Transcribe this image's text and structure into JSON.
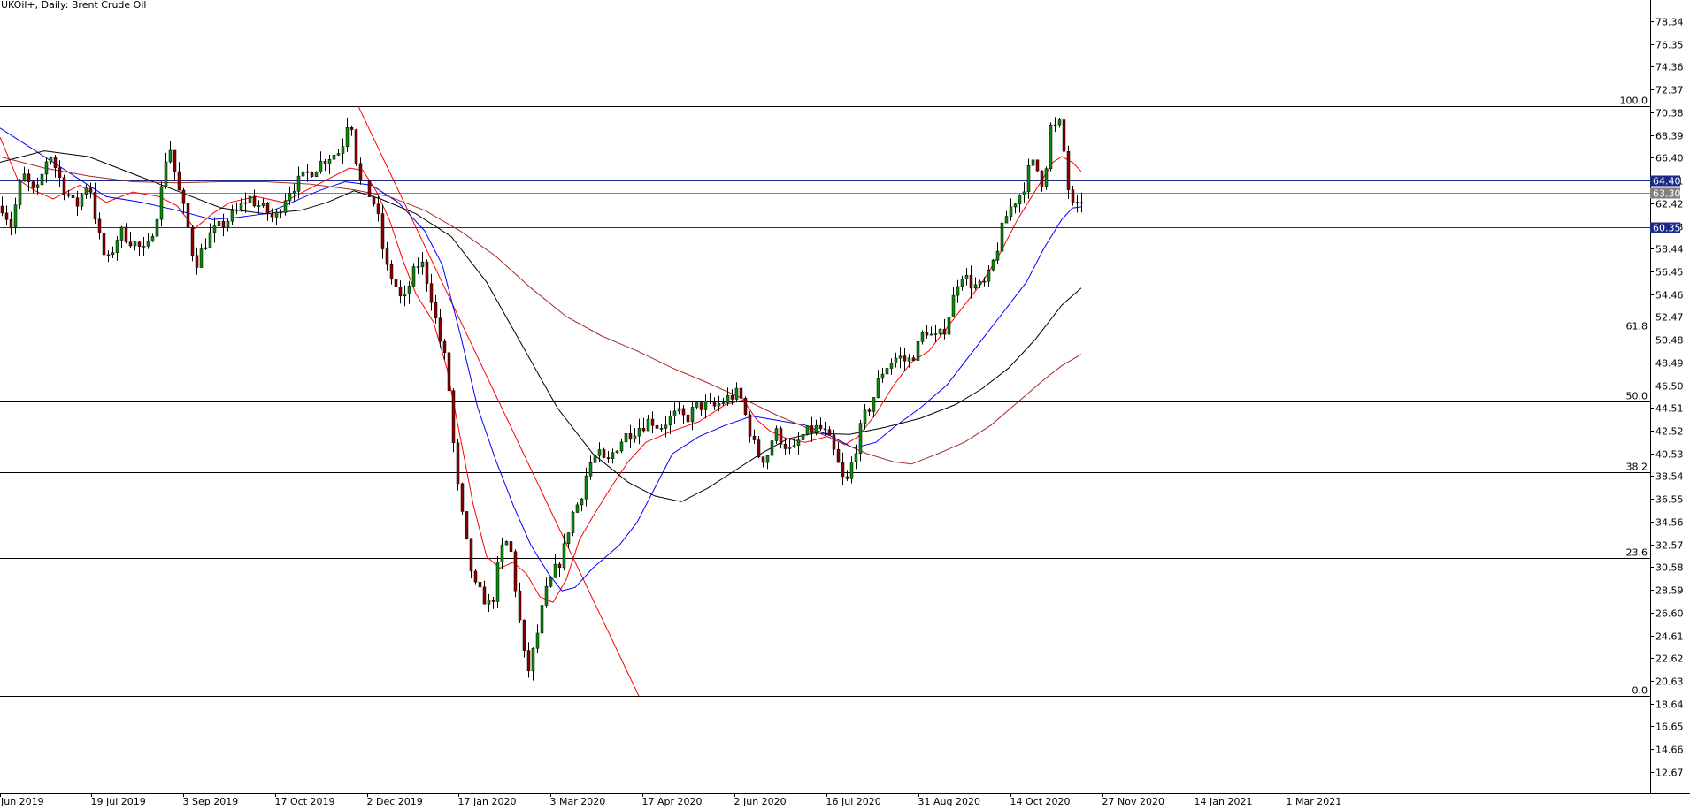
{
  "chart_data": {
    "type": "candlestick",
    "title": "UKOil+, Daily:  Brent Crude Oil",
    "y_ticks": [
      "78.34",
      "76.35",
      "74.36",
      "72.37",
      "70.38",
      "68.39",
      "66.40",
      "64.41",
      "62.42",
      "60.43",
      "58.44",
      "56.45",
      "54.46",
      "52.47",
      "50.48",
      "48.49",
      "46.50",
      "44.51",
      "42.52",
      "40.53",
      "38.54",
      "36.55",
      "34.56",
      "32.57",
      "30.58",
      "28.59",
      "26.60",
      "24.61",
      "22.62",
      "20.63",
      "18.64",
      "16.65",
      "14.66",
      "12.67"
    ],
    "x_ticks": [
      "Jun 2019",
      "19 Jul 2019",
      "3 Sep 2019",
      "17 Oct 2019",
      "2 Dec 2019",
      "17 Jan 2020",
      "3 Mar 2020",
      "17 Apr 2020",
      "2 Jun 2020",
      "16 Jul 2020",
      "31 Aug 2020",
      "14 Oct 2020",
      "27 Nov 2020",
      "14 Jan 2021",
      "1 Mar 2021"
    ],
    "ylim": [
      10.8,
      80.2
    ],
    "fibonacci": [
      {
        "label": "100.0",
        "price": 70.9
      },
      {
        "label": "61.8",
        "price": 51.2
      },
      {
        "label": "50.0",
        "price": 45.1
      },
      {
        "label": "38.2",
        "price": 38.9
      },
      {
        "label": "23.6",
        "price": 31.4
      },
      {
        "label": "0.0",
        "price": 19.3
      }
    ],
    "horizontal_lines": [
      {
        "label": "64.40",
        "price": 64.4,
        "color": "#1c2a8a"
      },
      {
        "label": "63.30",
        "price": 63.3,
        "color": "#808080"
      },
      {
        "label": "60.35",
        "price": 60.35,
        "color": "#1c2a8a"
      }
    ],
    "colors": {
      "bull": "#0a8a0a",
      "bear": "#8b0000",
      "ma_fast": "#ff0000",
      "ma_mid": "#0000ff",
      "ma_slow": "#000000",
      "ma_long": "#a52a2a",
      "trendline": "#ff0000"
    },
    "series": [
      {
        "name": "",
        "color": "#ff0000",
        "points": [
          [
            0,
            68.2
          ],
          [
            20,
            64.5
          ],
          [
            40,
            63.5
          ],
          [
            60,
            62.8
          ],
          [
            90,
            64.0
          ],
          [
            120,
            62.5
          ],
          [
            150,
            63.4
          ],
          [
            180,
            63.0
          ],
          [
            200,
            62.2
          ],
          [
            220,
            60.2
          ],
          [
            240,
            61.5
          ],
          [
            260,
            62.5
          ],
          [
            290,
            63.0
          ],
          [
            320,
            62.5
          ],
          [
            345,
            63.5
          ],
          [
            370,
            64.5
          ],
          [
            395,
            65.5
          ],
          [
            410,
            65.3
          ],
          [
            425,
            63.5
          ],
          [
            440,
            61.0
          ],
          [
            455,
            57.5
          ],
          [
            470,
            54.5
          ],
          [
            490,
            52.0
          ],
          [
            505,
            48.0
          ],
          [
            520,
            42.0
          ],
          [
            535,
            36.0
          ],
          [
            550,
            31.5
          ],
          [
            565,
            30.5
          ],
          [
            580,
            31.0
          ],
          [
            595,
            30.0
          ],
          [
            610,
            28.0
          ],
          [
            625,
            27.5
          ],
          [
            640,
            29.5
          ],
          [
            655,
            33.0
          ],
          [
            670,
            35.0
          ],
          [
            690,
            37.5
          ],
          [
            710,
            39.8
          ],
          [
            730,
            41.5
          ],
          [
            760,
            42.5
          ],
          [
            790,
            43.3
          ],
          [
            820,
            44.8
          ],
          [
            840,
            45.2
          ],
          [
            855,
            43.5
          ],
          [
            870,
            42.5
          ],
          [
            890,
            41.8
          ],
          [
            910,
            41.5
          ],
          [
            935,
            42.0
          ],
          [
            955,
            41.3
          ],
          [
            970,
            42.0
          ],
          [
            990,
            44.0
          ],
          [
            1010,
            46.5
          ],
          [
            1030,
            48.5
          ],
          [
            1050,
            49.5
          ],
          [
            1070,
            51.5
          ],
          [
            1090,
            53.5
          ],
          [
            1110,
            55.5
          ],
          [
            1130,
            58.0
          ],
          [
            1150,
            61.0
          ],
          [
            1170,
            63.5
          ],
          [
            1190,
            66.0
          ],
          [
            1200,
            66.5
          ],
          [
            1212,
            66.0
          ],
          [
            1222,
            65.2
          ]
        ]
      },
      {
        "name": "",
        "color": "#0000ff",
        "points": [
          [
            0,
            69.0
          ],
          [
            30,
            67.5
          ],
          [
            60,
            66.0
          ],
          [
            90,
            64.5
          ],
          [
            120,
            63.0
          ],
          [
            160,
            62.5
          ],
          [
            200,
            61.8
          ],
          [
            240,
            61.0
          ],
          [
            270,
            61.2
          ],
          [
            300,
            61.5
          ],
          [
            330,
            62.5
          ],
          [
            360,
            63.5
          ],
          [
            390,
            64.3
          ],
          [
            420,
            64.0
          ],
          [
            450,
            62.5
          ],
          [
            480,
            60.0
          ],
          [
            500,
            57.0
          ],
          [
            520,
            51.0
          ],
          [
            540,
            44.5
          ],
          [
            560,
            40.0
          ],
          [
            580,
            36.0
          ],
          [
            600,
            32.5
          ],
          [
            620,
            30.0
          ],
          [
            635,
            28.5
          ],
          [
            650,
            28.8
          ],
          [
            670,
            30.5
          ],
          [
            700,
            32.5
          ],
          [
            720,
            34.5
          ],
          [
            740,
            37.5
          ],
          [
            760,
            40.5
          ],
          [
            790,
            42.0
          ],
          [
            820,
            43.0
          ],
          [
            850,
            43.8
          ],
          [
            880,
            43.4
          ],
          [
            910,
            43.0
          ],
          [
            940,
            42.0
          ],
          [
            965,
            41.0
          ],
          [
            990,
            41.5
          ],
          [
            1010,
            42.8
          ],
          [
            1040,
            44.5
          ],
          [
            1070,
            46.5
          ],
          [
            1100,
            49.5
          ],
          [
            1130,
            52.5
          ],
          [
            1160,
            55.5
          ],
          [
            1180,
            58.5
          ],
          [
            1200,
            61.0
          ],
          [
            1212,
            62.0
          ],
          [
            1222,
            62.1
          ]
        ]
      },
      {
        "name": "",
        "color": "#000000",
        "points": [
          [
            0,
            66.0
          ],
          [
            50,
            67.0
          ],
          [
            100,
            66.5
          ],
          [
            150,
            65.0
          ],
          [
            200,
            63.5
          ],
          [
            250,
            62.0
          ],
          [
            300,
            61.5
          ],
          [
            340,
            61.8
          ],
          [
            370,
            62.5
          ],
          [
            400,
            63.5
          ],
          [
            430,
            62.8
          ],
          [
            470,
            61.5
          ],
          [
            510,
            59.5
          ],
          [
            550,
            55.5
          ],
          [
            590,
            50.0
          ],
          [
            630,
            44.5
          ],
          [
            670,
            40.5
          ],
          [
            710,
            38.0
          ],
          [
            740,
            36.8
          ],
          [
            770,
            36.3
          ],
          [
            800,
            37.5
          ],
          [
            830,
            39.0
          ],
          [
            860,
            40.5
          ],
          [
            890,
            41.8
          ],
          [
            920,
            42.3
          ],
          [
            960,
            42.2
          ],
          [
            1000,
            42.8
          ],
          [
            1040,
            43.6
          ],
          [
            1080,
            44.8
          ],
          [
            1110,
            46.2
          ],
          [
            1140,
            48.0
          ],
          [
            1170,
            50.5
          ],
          [
            1200,
            53.5
          ],
          [
            1222,
            55.0
          ]
        ]
      },
      {
        "name": "",
        "color": "#a52a2a",
        "points": [
          [
            0,
            66.5
          ],
          [
            50,
            65.5
          ],
          [
            100,
            64.8
          ],
          [
            150,
            64.3
          ],
          [
            200,
            64.2
          ],
          [
            250,
            64.3
          ],
          [
            300,
            64.3
          ],
          [
            350,
            64.1
          ],
          [
            400,
            63.6
          ],
          [
            440,
            63.0
          ],
          [
            480,
            61.8
          ],
          [
            520,
            60.0
          ],
          [
            560,
            57.8
          ],
          [
            600,
            55.0
          ],
          [
            640,
            52.5
          ],
          [
            680,
            50.8
          ],
          [
            720,
            49.5
          ],
          [
            760,
            48.0
          ],
          [
            800,
            46.7
          ],
          [
            840,
            45.3
          ],
          [
            880,
            43.8
          ],
          [
            920,
            42.5
          ],
          [
            950,
            41.5
          ],
          [
            980,
            40.5
          ],
          [
            1010,
            39.8
          ],
          [
            1030,
            39.6
          ],
          [
            1060,
            40.5
          ],
          [
            1090,
            41.5
          ],
          [
            1120,
            43.0
          ],
          [
            1150,
            45.0
          ],
          [
            1180,
            47.0
          ],
          [
            1200,
            48.2
          ],
          [
            1222,
            49.2
          ]
        ]
      }
    ],
    "trendline": {
      "from": [
        405,
        70.9
      ],
      "to": [
        722,
        19.3
      ]
    },
    "candles_source": [
      [
        0,
        62.5
      ],
      [
        12,
        60.5
      ],
      [
        25,
        65.0
      ],
      [
        40,
        63.0
      ],
      [
        55,
        67.0
      ],
      [
        70,
        64.0
      ],
      [
        85,
        62.0
      ],
      [
        100,
        64.5
      ],
      [
        110,
        60.0
      ],
      [
        120,
        57.0
      ],
      [
        135,
        60.0
      ],
      [
        150,
        59.0
      ],
      [
        165,
        58.0
      ],
      [
        180,
        62.5
      ],
      [
        190,
        68.0
      ],
      [
        200,
        64.0
      ],
      [
        210,
        61.0
      ],
      [
        220,
        57.0
      ],
      [
        235,
        59.5
      ],
      [
        250,
        60.5
      ],
      [
        265,
        61.5
      ],
      [
        280,
        63.0
      ],
      [
        295,
        62.0
      ],
      [
        310,
        61.0
      ],
      [
        325,
        63.5
      ],
      [
        340,
        64.5
      ],
      [
        355,
        65.5
      ],
      [
        370,
        66.5
      ],
      [
        385,
        67.0
      ],
      [
        395,
        70.5
      ],
      [
        405,
        64.5
      ],
      [
        415,
        63.5
      ],
      [
        425,
        62.0
      ],
      [
        435,
        57.0
      ],
      [
        445,
        55.5
      ],
      [
        455,
        53.5
      ],
      [
        465,
        56.0
      ],
      [
        475,
        57.5
      ],
      [
        485,
        55.0
      ],
      [
        495,
        51.0
      ],
      [
        505,
        48.0
      ],
      [
        515,
        38.5
      ],
      [
        525,
        33.5
      ],
      [
        535,
        29.0
      ],
      [
        545,
        28.0
      ],
      [
        555,
        27.0
      ],
      [
        565,
        32.0
      ],
      [
        575,
        33.0
      ],
      [
        585,
        27.0
      ],
      [
        595,
        21.0
      ],
      [
        605,
        24.0
      ],
      [
        615,
        28.0
      ],
      [
        625,
        30.0
      ],
      [
        635,
        31.5
      ],
      [
        645,
        35.0
      ],
      [
        655,
        36.5
      ],
      [
        665,
        39.5
      ],
      [
        675,
        40.5
      ],
      [
        685,
        39.5
      ],
      [
        695,
        41.0
      ],
      [
        705,
        42.0
      ],
      [
        715,
        42.5
      ],
      [
        725,
        43.0
      ],
      [
        735,
        43.5
      ],
      [
        745,
        42.8
      ],
      [
        755,
        43.5
      ],
      [
        765,
        44.0
      ],
      [
        775,
        43.5
      ],
      [
        785,
        44.5
      ],
      [
        795,
        44.8
      ],
      [
        805,
        44.5
      ],
      [
        815,
        45.0
      ],
      [
        825,
        45.5
      ],
      [
        835,
        45.8
      ],
      [
        845,
        43.0
      ],
      [
        855,
        40.5
      ],
      [
        865,
        40.0
      ],
      [
        875,
        42.5
      ],
      [
        885,
        41.5
      ],
      [
        895,
        40.5
      ],
      [
        905,
        42.0
      ],
      [
        915,
        42.5
      ],
      [
        925,
        42.8
      ],
      [
        935,
        42.0
      ],
      [
        945,
        40.0
      ],
      [
        955,
        37.5
      ],
      [
        965,
        40.5
      ],
      [
        975,
        43.5
      ],
      [
        985,
        45.0
      ],
      [
        995,
        47.5
      ],
      [
        1005,
        48.5
      ],
      [
        1015,
        49.0
      ],
      [
        1025,
        48.5
      ],
      [
        1035,
        49.5
      ],
      [
        1045,
        51.5
      ],
      [
        1055,
        50.5
      ],
      [
        1065,
        51.0
      ],
      [
        1075,
        53.5
      ],
      [
        1085,
        56.5
      ],
      [
        1095,
        55.5
      ],
      [
        1105,
        55.0
      ],
      [
        1115,
        55.5
      ],
      [
        1125,
        58.0
      ],
      [
        1135,
        61.0
      ],
      [
        1145,
        62.5
      ],
      [
        1155,
        63.5
      ],
      [
        1165,
        66.0
      ],
      [
        1175,
        65.0
      ],
      [
        1180,
        63.5
      ],
      [
        1185,
        69.5
      ],
      [
        1190,
        68.5
      ],
      [
        1195,
        69.8
      ],
      [
        1200,
        68.5
      ],
      [
        1205,
        64.5
      ],
      [
        1210,
        62.5
      ],
      [
        1215,
        61.5
      ],
      [
        1222,
        62.8
      ]
    ]
  }
}
